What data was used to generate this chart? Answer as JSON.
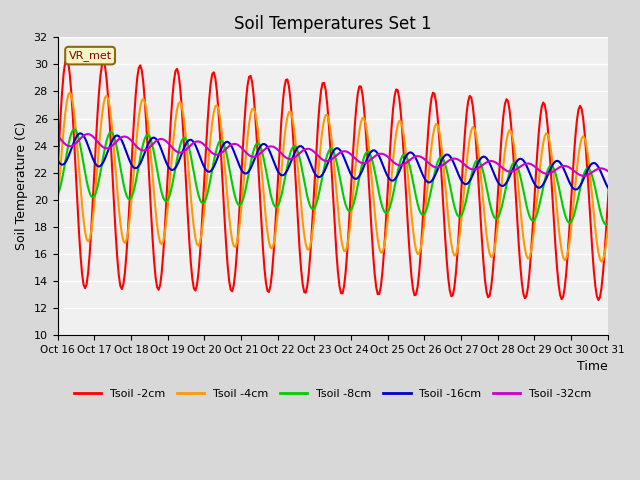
{
  "title": "Soil Temperatures Set 1",
  "xlabel": "Time",
  "ylabel": "Soil Temperature (C)",
  "ylim": [
    10,
    32
  ],
  "bg_color": "#d8d8d8",
  "plot_bg": "#f0f0f0",
  "annotation_text": "VR_met",
  "x_tick_labels": [
    "Oct 16",
    "Oct 17",
    "Oct 18",
    "Oct 19",
    "Oct 20",
    "Oct 21",
    "Oct 22",
    "Oct 23",
    "Oct 24",
    "Oct 25",
    "Oct 26",
    "Oct 27",
    "Oct 28",
    "Oct 29",
    "Oct 30",
    "Oct 31"
  ],
  "series": {
    "Tsoil -2cm": {
      "color": "#ff0000",
      "linewidth": 1.5
    },
    "Tsoil -4cm": {
      "color": "#ff9900",
      "linewidth": 1.5
    },
    "Tsoil -8cm": {
      "color": "#00cc00",
      "linewidth": 1.5
    },
    "Tsoil -16cm": {
      "color": "#0000cc",
      "linewidth": 1.5
    },
    "Tsoil -32cm": {
      "color": "#cc00cc",
      "linewidth": 1.5
    }
  }
}
